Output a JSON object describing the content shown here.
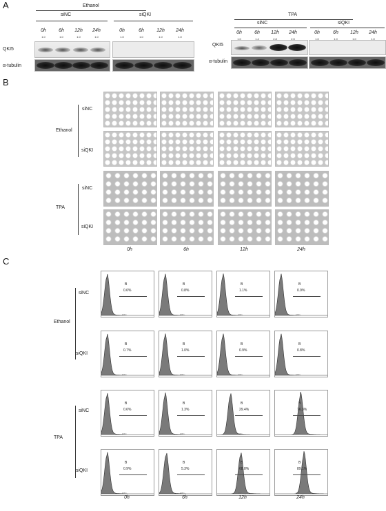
{
  "panelA": {
    "letter": "A",
    "ethanol": {
      "group_label": "Ethanol",
      "sinc_label": "siNC",
      "siqki_label": "siQKI",
      "times": [
        "0h",
        "6h",
        "12h",
        "24h",
        "0h",
        "6h",
        "12h",
        "24h"
      ],
      "ratios": [
        "1.0",
        "1.0",
        "1.0",
        "1.0",
        "1.0",
        "1.0",
        "1.0",
        "1.0"
      ],
      "row_qki": "QKI5",
      "row_tubulin": "α-tubulin"
    },
    "tpa": {
      "group_label": "TPA",
      "sinc_label": "siNC",
      "siqki_label": "siQKI",
      "times": [
        "0h",
        "6h",
        "12h",
        "24h",
        "0h",
        "6h",
        "12h",
        "24h"
      ],
      "ratios": [
        "1.0",
        "1.4",
        "2.8",
        "2.5",
        "1.0",
        "1.0",
        "1.0",
        "1.0"
      ],
      "row_qki": "QKI5",
      "row_tubulin": "α-tubulin"
    }
  },
  "panelB": {
    "letter": "B",
    "ethanol_label": "Ethanol",
    "tpa_label": "TPA",
    "sinc_label": "siNC",
    "siqki_label": "siQKI",
    "times": [
      "0h",
      "6h",
      "12h",
      "24h"
    ]
  },
  "panelC": {
    "letter": "C",
    "ethanol_label": "Ethanol",
    "tpa_label": "TPA",
    "sinc_label": "siNC",
    "siqki_label": "siQKI",
    "gate_label": "B",
    "axis_label": "FITC",
    "times": [
      "0h",
      "6h",
      "12h",
      "24h"
    ],
    "ethanol_sinc": [
      "0.6%",
      "0.8%",
      "1.1%",
      "0.9%"
    ],
    "ethanol_siqki": [
      "0.7%",
      "1.0%",
      "0.9%",
      "0.8%"
    ],
    "tpa_sinc": [
      "0.6%",
      "1.3%",
      "29.4%",
      "76.3%"
    ],
    "tpa_siqki": [
      "0.9%",
      "5.3%",
      "68.8%",
      "89.1%"
    ]
  }
}
